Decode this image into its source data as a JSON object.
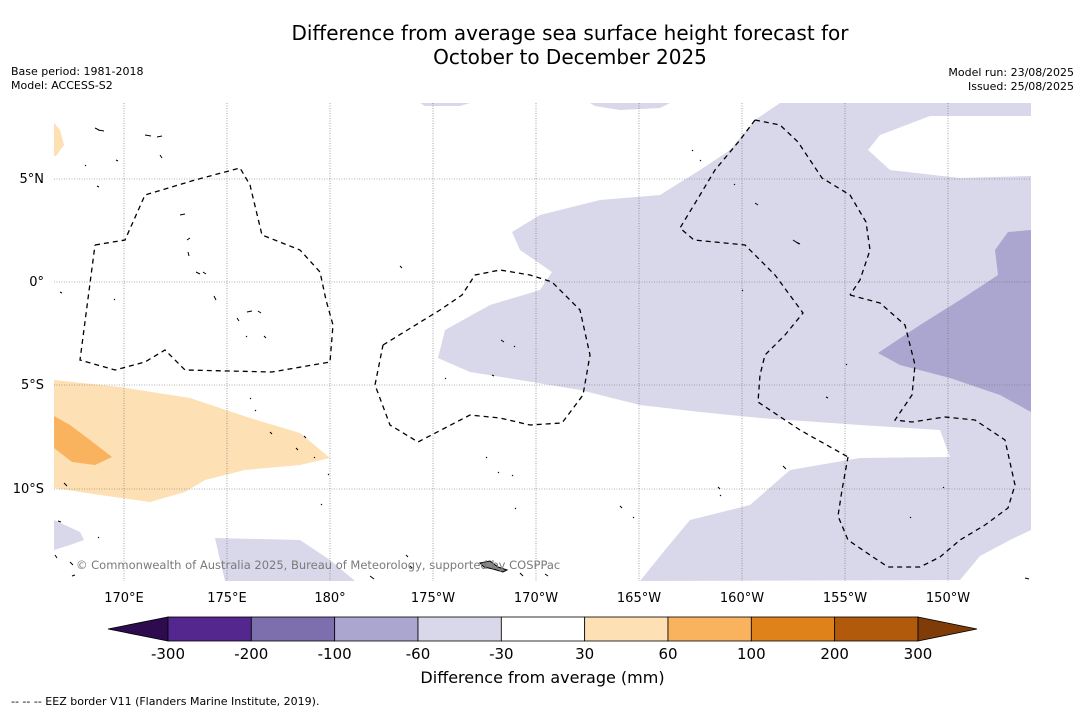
{
  "title_line1": "Difference from average sea surface height forecast for",
  "title_line2": "October to December 2025",
  "meta_left": {
    "base_period": "Base period: 1981-2018",
    "model": "Model: ACCESS-S2"
  },
  "meta_right": {
    "model_run": "Model run: 23/08/2025",
    "issued": "Issued: 25/08/2025"
  },
  "lat_labels": [
    "5°N",
    "0°",
    "5°S",
    "10°S"
  ],
  "lon_labels": [
    "170°E",
    "175°E",
    "180°",
    "175°W",
    "170°W",
    "165°W",
    "160°W",
    "155°W",
    "150°W"
  ],
  "copyright": "© Commonwealth of Australia 2025, Bureau of Meteorology, supported by COSPPac",
  "colorbar": {
    "ticks": [
      "-300",
      "-200",
      "-100",
      "-60",
      "-30",
      "30",
      "60",
      "100",
      "200",
      "300"
    ],
    "colors": [
      "#2d0b4e",
      "#54278f",
      "#7d6fae",
      "#aba6d0",
      "#d8d8ea",
      "#ffffff",
      "#fde0b4",
      "#f9b35f",
      "#e0821a",
      "#b15a0c",
      "#7f3b08"
    ],
    "label": "Difference from average (mm)"
  },
  "eez_note": "--  --  -- EEZ border V11 (Flanders Marine Institute, 2019).",
  "colors": {
    "light_purple": "#d8d8ea",
    "mid_purple": "#aba6d0",
    "light_orange": "#fde0b4",
    "mid_orange": "#f9b35f"
  }
}
